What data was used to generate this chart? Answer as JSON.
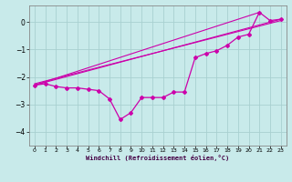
{
  "title": "",
  "xlabel": "Windchill (Refroidissement éolien,°C)",
  "bg_color": "#c8eaea",
  "grid_color": "#a8d0d0",
  "line_color": "#cc00aa",
  "xlim": [
    -0.5,
    23.5
  ],
  "ylim": [
    -4.5,
    0.6
  ],
  "yticks": [
    0,
    -1,
    -2,
    -3,
    -4
  ],
  "xticks": [
    0,
    1,
    2,
    3,
    4,
    5,
    6,
    7,
    8,
    9,
    10,
    11,
    12,
    13,
    14,
    15,
    16,
    17,
    18,
    19,
    20,
    21,
    22,
    23
  ],
  "main_line_x": [
    0,
    1,
    2,
    3,
    4,
    5,
    6,
    7,
    8,
    9,
    10,
    11,
    12,
    13,
    14,
    15,
    16,
    17,
    18,
    19,
    20,
    21,
    22,
    23
  ],
  "main_line_y": [
    -2.3,
    -2.25,
    -2.35,
    -2.4,
    -2.4,
    -2.45,
    -2.5,
    -2.8,
    -3.55,
    -3.3,
    -2.75,
    -2.75,
    -2.75,
    -2.55,
    -2.55,
    -1.3,
    -1.15,
    -1.05,
    -0.85,
    -0.55,
    -0.45,
    0.35,
    0.05,
    0.1
  ],
  "line2_x": [
    0,
    23
  ],
  "line2_y": [
    -2.3,
    0.1
  ],
  "line3_x": [
    0,
    21
  ],
  "line3_y": [
    -2.3,
    0.35
  ],
  "line4_x": [
    0,
    23
  ],
  "line4_y": [
    -2.25,
    0.05
  ]
}
